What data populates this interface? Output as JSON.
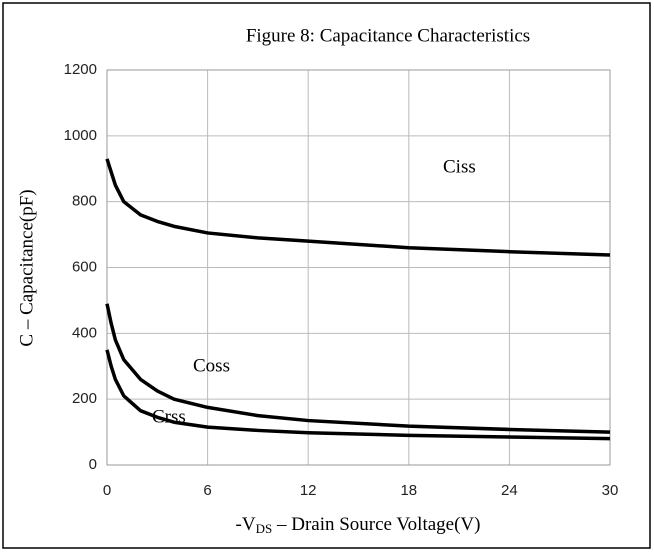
{
  "chart_data": {
    "type": "line",
    "title": "Figure 8: Capacitance Characteristics",
    "y_label": "C – Capacitance(pF)",
    "x_label": [
      "-V",
      "DS",
      " – Drain Source Voltage(V)"
    ],
    "x": [
      0,
      0.25,
      0.5,
      1,
      2,
      3,
      4,
      6,
      9,
      12,
      18,
      24,
      30
    ],
    "series": [
      {
        "name": "Ciss",
        "color": "#000000",
        "values": [
          930,
          890,
          850,
          800,
          760,
          740,
          725,
          705,
          690,
          680,
          660,
          648,
          638
        ]
      },
      {
        "name": "Coss",
        "color": "#000000",
        "values": [
          490,
          430,
          380,
          320,
          260,
          225,
          200,
          175,
          150,
          135,
          118,
          108,
          100
        ]
      },
      {
        "name": "Crss",
        "color": "#000000",
        "values": [
          350,
          300,
          260,
          210,
          165,
          145,
          130,
          115,
          105,
          98,
          90,
          85,
          80
        ]
      }
    ],
    "xlim": [
      0,
      30
    ],
    "xticks": [
      0,
      6,
      12,
      18,
      24,
      30
    ],
    "ylim": [
      0,
      1200
    ],
    "yticks": [
      0,
      200,
      400,
      600,
      800,
      1000,
      1200
    ],
    "grid": true
  }
}
